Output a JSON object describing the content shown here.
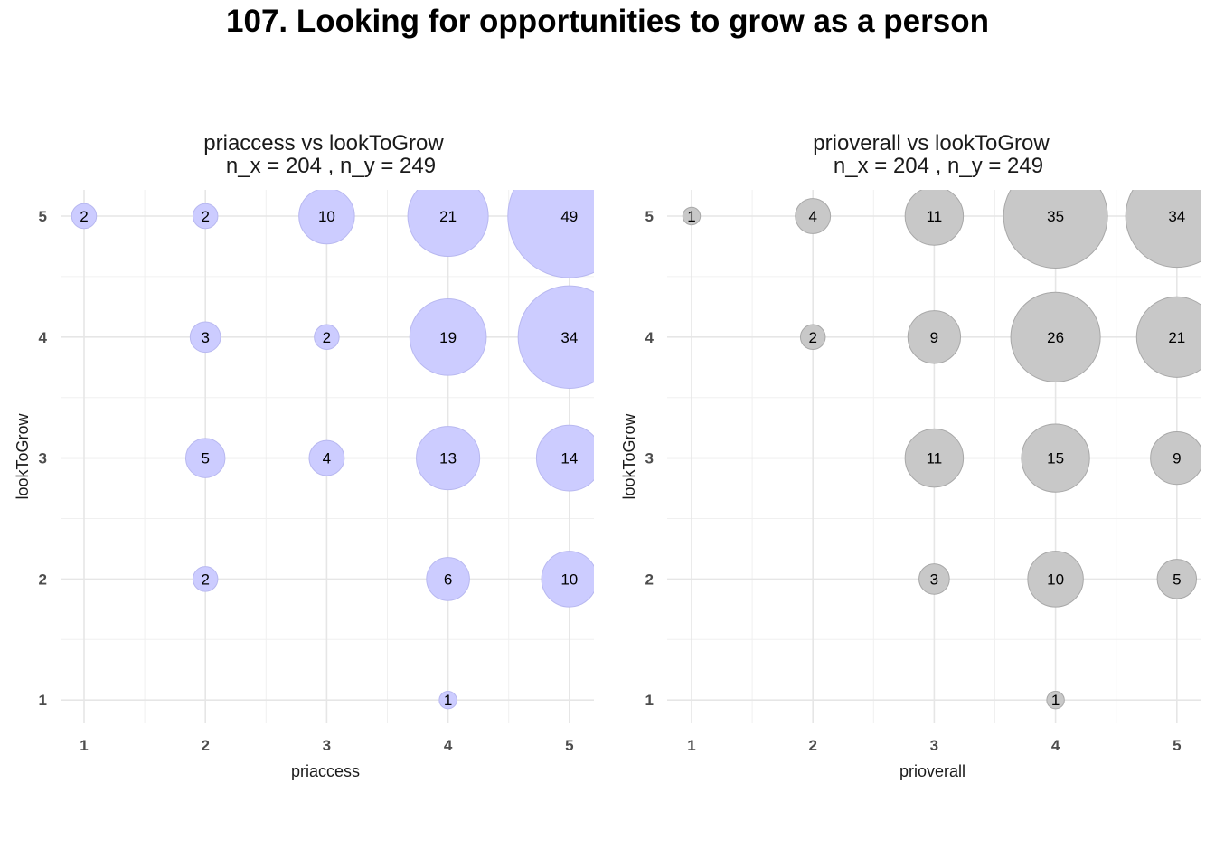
{
  "title": "107. Looking for opportunities to grow as a person",
  "chart_data": [
    {
      "type": "scatter",
      "subtype": "bubble",
      "title_line1": "priaccess vs lookToGrow",
      "title_line2": "n_x = 204 , n_y = 249",
      "xlabel": "priaccess",
      "ylabel": "lookToGrow",
      "x_ticks": [
        "1",
        "2",
        "3",
        "4",
        "5"
      ],
      "y_ticks": [
        "1",
        "2",
        "3",
        "4",
        "5"
      ],
      "xlim": [
        0.8,
        5.2
      ],
      "ylim": [
        0.8,
        5.2
      ],
      "bubble_color": "#ccccff",
      "bubble_stroke": "#b8b8f0",
      "points": [
        {
          "x": 1,
          "y": 5,
          "n": 2
        },
        {
          "x": 2,
          "y": 5,
          "n": 2
        },
        {
          "x": 3,
          "y": 5,
          "n": 10
        },
        {
          "x": 4,
          "y": 5,
          "n": 21
        },
        {
          "x": 5,
          "y": 5,
          "n": 49
        },
        {
          "x": 2,
          "y": 4,
          "n": 3
        },
        {
          "x": 3,
          "y": 4,
          "n": 2
        },
        {
          "x": 4,
          "y": 4,
          "n": 19
        },
        {
          "x": 5,
          "y": 4,
          "n": 34
        },
        {
          "x": 2,
          "y": 3,
          "n": 5
        },
        {
          "x": 3,
          "y": 3,
          "n": 4
        },
        {
          "x": 4,
          "y": 3,
          "n": 13
        },
        {
          "x": 5,
          "y": 3,
          "n": 14
        },
        {
          "x": 2,
          "y": 2,
          "n": 2
        },
        {
          "x": 4,
          "y": 2,
          "n": 6
        },
        {
          "x": 5,
          "y": 2,
          "n": 10
        },
        {
          "x": 4,
          "y": 1,
          "n": 1
        }
      ]
    },
    {
      "type": "scatter",
      "subtype": "bubble",
      "title_line1": "prioverall vs lookToGrow",
      "title_line2": "n_x = 204 , n_y = 249",
      "xlabel": "prioverall",
      "ylabel": "lookToGrow",
      "x_ticks": [
        "1",
        "2",
        "3",
        "4",
        "5"
      ],
      "y_ticks": [
        "1",
        "2",
        "3",
        "4",
        "5"
      ],
      "xlim": [
        0.8,
        5.2
      ],
      "ylim": [
        0.8,
        5.2
      ],
      "bubble_color": "#c8c8c8",
      "bubble_stroke": "#a8a8a8",
      "points": [
        {
          "x": 1,
          "y": 5,
          "n": 1
        },
        {
          "x": 2,
          "y": 5,
          "n": 4
        },
        {
          "x": 3,
          "y": 5,
          "n": 11
        },
        {
          "x": 4,
          "y": 5,
          "n": 35
        },
        {
          "x": 5,
          "y": 5,
          "n": 34
        },
        {
          "x": 2,
          "y": 4,
          "n": 2
        },
        {
          "x": 3,
          "y": 4,
          "n": 9
        },
        {
          "x": 4,
          "y": 4,
          "n": 26
        },
        {
          "x": 5,
          "y": 4,
          "n": 21
        },
        {
          "x": 3,
          "y": 3,
          "n": 11
        },
        {
          "x": 4,
          "y": 3,
          "n": 15
        },
        {
          "x": 5,
          "y": 3,
          "n": 9
        },
        {
          "x": 3,
          "y": 2,
          "n": 3
        },
        {
          "x": 4,
          "y": 2,
          "n": 10
        },
        {
          "x": 5,
          "y": 2,
          "n": 5
        },
        {
          "x": 4,
          "y": 1,
          "n": 1
        }
      ]
    }
  ]
}
